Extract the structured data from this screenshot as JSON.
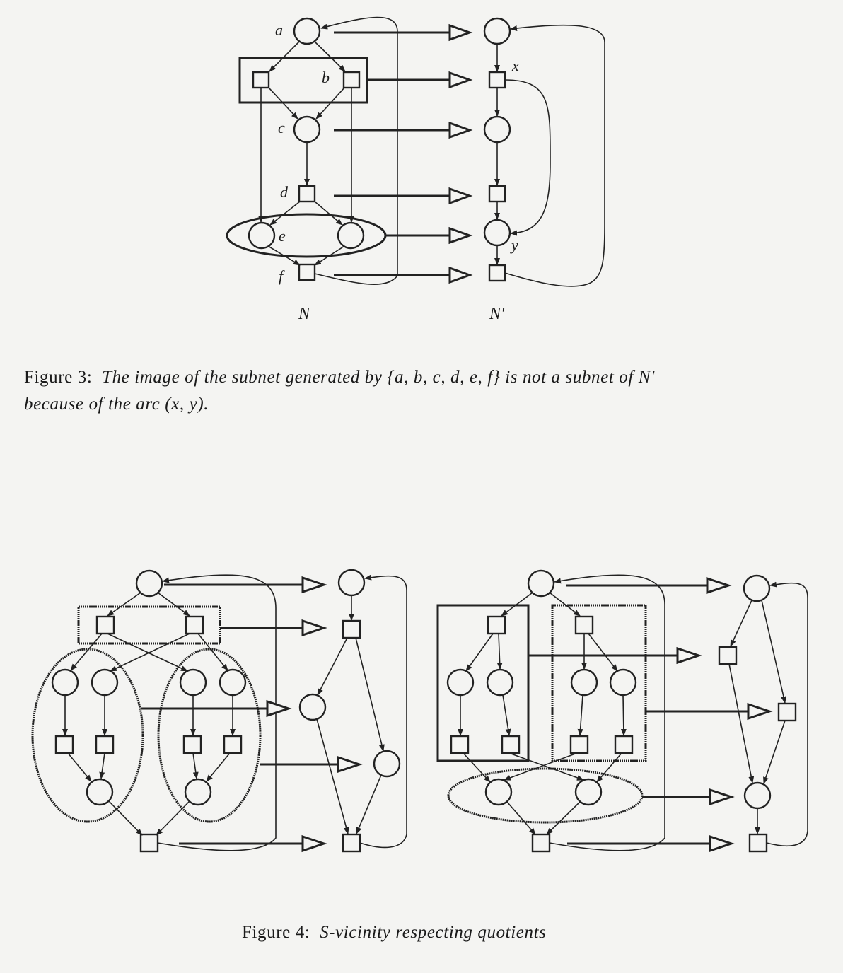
{
  "figure3": {
    "node_labels": {
      "a": "a",
      "b": "b",
      "c": "c",
      "d": "d",
      "e": "e",
      "f": "f",
      "x": "x",
      "y": "y"
    },
    "net_labels": {
      "left": "N",
      "right": "N'"
    },
    "caption": {
      "prefix": "Figure 3:",
      "line1": "The image of the subnet generated by {a, b, c, d, e, f} is not a subnet of N'",
      "line2": "because of the arc (x, y)."
    }
  },
  "figure4": {
    "caption": {
      "prefix": "Figure 4:",
      "text": "S-vicinity respecting quotients"
    }
  }
}
